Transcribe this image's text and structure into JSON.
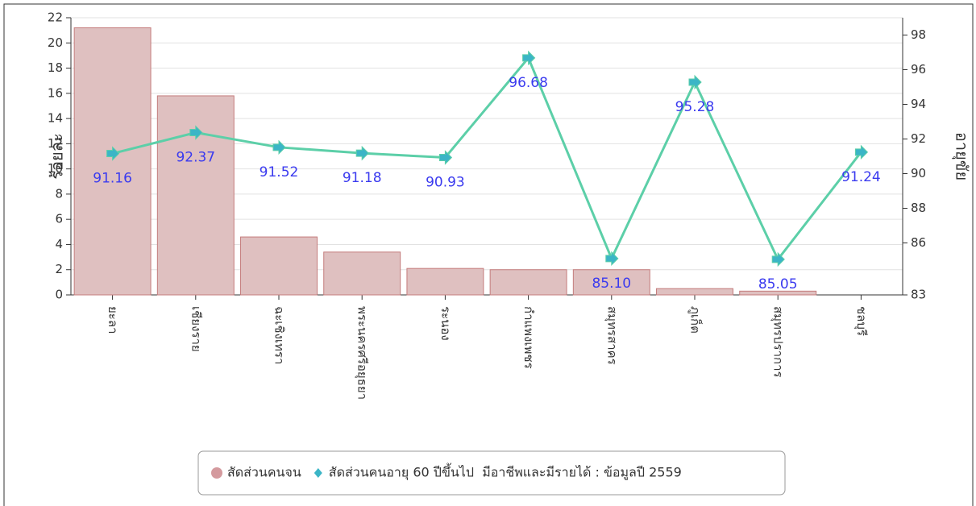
{
  "chart_data": {
    "type": "bar-line",
    "categories": [
      "ยะลา",
      "เชียงราย",
      "ฉะเชิงเทรา",
      "พระนครศรีอยุธยา",
      "ระนอง",
      "กำแพงเพชร",
      "สมุทรสาคร",
      "ภูเก็ต",
      "สมุทรปราการ",
      "ชลบุรี"
    ],
    "y_label": "ร้อยละ",
    "y2_label": "อายุขัย",
    "ylim": [
      0,
      22
    ],
    "yticks": [
      0,
      2,
      4,
      6,
      8,
      10,
      12,
      14,
      16,
      18,
      20,
      22
    ],
    "y2lim": [
      83,
      99
    ],
    "y2ticks": [
      83,
      86,
      88,
      90,
      92,
      94,
      96,
      98
    ],
    "grid": true,
    "series": [
      {
        "name": "สัดส่วนคนจน",
        "type": "bar",
        "color": "#dfc0c0",
        "values": [
          21.2,
          15.8,
          4.6,
          3.4,
          2.1,
          2.0,
          2.0,
          0.5,
          0.3,
          0
        ]
      },
      {
        "name": "สัดส่วนคนอายุ 60 ปีขึ้นไป  มีอาชีพและมีรายได้ : ข้อมูลปี 2559",
        "type": "line",
        "axis": "y2",
        "color": "#5ccfa8",
        "values": [
          91.16,
          92.37,
          91.52,
          91.18,
          90.93,
          96.68,
          85.1,
          95.28,
          85.05,
          91.24
        ],
        "value_labels": [
          "91.16",
          "92.37",
          "91.52",
          "91.18",
          "90.93",
          "96.68",
          "85.10",
          "95.28",
          "85.05",
          "91.24"
        ]
      }
    ]
  }
}
